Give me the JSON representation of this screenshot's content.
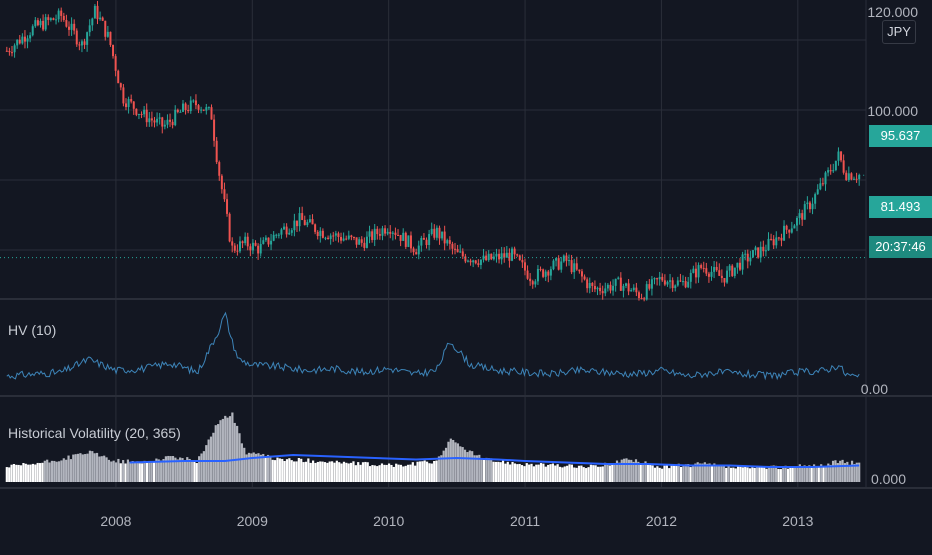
{
  "chart_data": {
    "type": "line",
    "panes": [
      {
        "name": "price",
        "series": [
          {
            "name": "",
            "x": [
              2007.2,
              2007.4,
              2007.6,
              2007.75,
              2007.85,
              2007.95,
              2008.05,
              2008.2,
              2008.35,
              2008.5,
              2008.6,
              2008.7,
              2008.75,
              2008.8,
              2008.85,
              2008.95,
              2009.05,
              2009.2,
              2009.35,
              2009.5,
              2009.65,
              2009.8,
              2010.0,
              2010.2,
              2010.35,
              2010.5,
              2010.7,
              2010.9,
              2011.05,
              2011.2,
              2011.3,
              2011.5,
              2011.7,
              2011.85,
              2012.0,
              2012.15,
              2012.3,
              2012.45,
              2012.6,
              2012.75,
              2012.9,
              2013.0,
              2013.1,
              2013.2,
              2013.3,
              2013.35,
              2013.45
            ],
            "y": [
              117,
              121,
              123,
              118,
              124,
              119,
              109,
              106,
              104,
              107,
              108,
              106,
              97,
              90,
              83,
              84,
              83,
              86,
              88,
              86,
              85,
              84,
              87,
              83,
              86,
              82,
              81,
              82,
              78,
              80,
              81,
              76,
              77,
              75,
              78,
              77,
              80,
              78,
              81,
              83,
              86,
              88,
              91,
              95,
              99,
              96,
              95.637
            ]
          }
        ],
        "y_ticks": [
          "120.000",
          "100.000"
        ],
        "ylim": [
          78,
          124
        ]
      },
      {
        "name": "hv",
        "title": "HV (10)",
        "series": [
          {
            "name": "",
            "x": [
              2007.2,
              2007.4,
              2007.6,
              2007.8,
              2008.0,
              2008.2,
              2008.4,
              2008.6,
              2008.75,
              2008.8,
              2008.85,
              2008.9,
              2009.0,
              2009.2,
              2009.4,
              2009.6,
              2009.8,
              2010.0,
              2010.2,
              2010.35,
              2010.45,
              2010.6,
              2010.8,
              2011.0,
              2011.2,
              2011.4,
              2011.6,
              2011.8,
              2012.0,
              2012.2,
              2012.4,
              2012.6,
              2012.8,
              2013.0,
              2013.2,
              2013.3,
              2013.35,
              2013.45
            ],
            "y": [
              6,
              7,
              8,
              15,
              9,
              10,
              13,
              8,
              30,
              40,
              25,
              15,
              12,
              11,
              9,
              10,
              8,
              10,
              7,
              9,
              25,
              12,
              9,
              8,
              7,
              9,
              8,
              7,
              9,
              6,
              8,
              7,
              6,
              8,
              9,
              12,
              7,
              5
            ]
          }
        ],
        "y_ticks": [
          "0.00"
        ],
        "ylim": [
          0,
          45
        ]
      },
      {
        "name": "historical-volatility",
        "title": "Historical Volatility (20, 365)",
        "series": [
          {
            "name": "",
            "x": [
              2007.2,
              2007.4,
              2007.6,
              2007.8,
              2008.0,
              2008.2,
              2008.4,
              2008.6,
              2008.75,
              2008.85,
              2008.95,
              2009.2,
              2009.5,
              2009.8,
              2010.1,
              2010.35,
              2010.45,
              2010.7,
              2011.0,
              2011.2,
              2011.5,
              2011.75,
              2012.0,
              2012.3,
              2012.6,
              2012.9,
              2013.2,
              2013.3,
              2013.45
            ],
            "y": [
              10,
              12,
              15,
              20,
              14,
              13,
              17,
              14,
              40,
              46,
              20,
              15,
              14,
              12,
              11,
              14,
              28,
              15,
              12,
              11,
              10,
              15,
              10,
              12,
              9,
              10,
              11,
              14,
              12
            ]
          },
          {
            "name": "",
            "x": [
              2008.1,
              2008.5,
              2008.8,
              2009.0,
              2009.3,
              2009.6,
              2009.9,
              2010.2,
              2010.5,
              2010.8,
              2011.0,
              2011.3,
              2011.6,
              2011.9,
              2012.2,
              2012.5,
              2012.8,
              2013.1,
              2013.45
            ],
            "y": [
              13,
              14,
              14,
              16,
              18,
              17,
              16,
              15,
              16,
              15,
              14,
              13,
              12,
              12,
              11,
              11,
              10,
              10,
              11
            ]
          }
        ],
        "y_ticks": [
          "0.000"
        ],
        "ylim": [
          0,
          50
        ]
      }
    ],
    "x_ticks": [
      "2008",
      "2009",
      "2010",
      "2011",
      "2012",
      "2013"
    ],
    "x_tick_values": [
      2008,
      2009,
      2010,
      2011,
      2012,
      2013
    ],
    "xlim": [
      2007.15,
      2013.5
    ],
    "last_price": "95.637",
    "crosshair_price": "81.493",
    "crosshair_value": 81.493,
    "countdown": "20:37:46",
    "currency": "JPY",
    "grid": true,
    "colors": {
      "background": "#131722",
      "up": "#26a69a",
      "down": "#ef5350",
      "hv_line": "#3d84b8",
      "hv_area": "#b2b5be",
      "hv_ma": "#2962ff",
      "grid": "#2a2e39"
    }
  }
}
